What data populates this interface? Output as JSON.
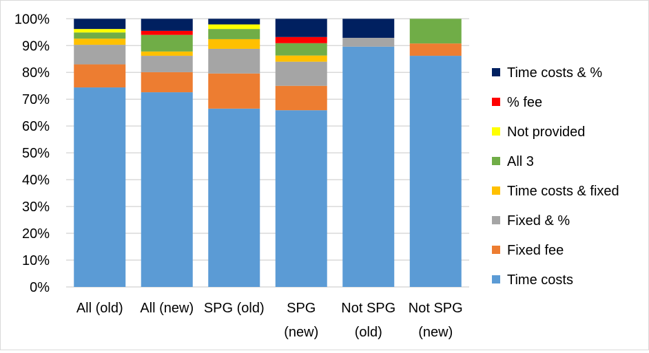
{
  "chart_data": {
    "type": "bar",
    "stacked": true,
    "title": "",
    "xlabel": "",
    "ylabel": "",
    "ylim": [
      0,
      100
    ],
    "yticks": [
      "0%",
      "10%",
      "20%",
      "30%",
      "40%",
      "50%",
      "60%",
      "70%",
      "80%",
      "90%",
      "100%"
    ],
    "grid": true,
    "legend_position": "right",
    "categories": [
      [
        "All (old)"
      ],
      [
        "All (new)"
      ],
      [
        "SPG (old)"
      ],
      [
        "SPG",
        "(new)"
      ],
      [
        "Not SPG",
        "(old)"
      ],
      [
        "Not SPG",
        "(new)"
      ]
    ],
    "series": [
      {
        "name": "Time costs",
        "color": "#5b9bd5",
        "values": [
          74.4,
          72.6,
          66.5,
          65.9,
          89.6,
          86.2
        ]
      },
      {
        "name": "Fixed fee",
        "color": "#ed7d31",
        "values": [
          8.6,
          7.5,
          13.1,
          9.1,
          0,
          4.6
        ]
      },
      {
        "name": "Fixed & %",
        "color": "#a5a5a5",
        "values": [
          7.3,
          6.1,
          9.2,
          9.0,
          3.3,
          0
        ]
      },
      {
        "name": "Time costs & fixed",
        "color": "#ffc000",
        "values": [
          2.3,
          1.6,
          3.6,
          2.3,
          0,
          0
        ]
      },
      {
        "name": "All 3",
        "color": "#70ad47",
        "values": [
          2.3,
          6.2,
          3.8,
          4.6,
          0,
          9.2
        ]
      },
      {
        "name": "Not provided",
        "color": "#ffff00",
        "values": [
          1.3,
          0,
          1.7,
          0,
          0,
          0
        ]
      },
      {
        "name": "% fee",
        "color": "#ff0000",
        "values": [
          0,
          1.5,
          0,
          2.3,
          0,
          0
        ]
      },
      {
        "name": "Time costs & %",
        "color": "#002060",
        "values": [
          3.8,
          4.5,
          2.1,
          6.8,
          7.1,
          0
        ]
      }
    ]
  }
}
